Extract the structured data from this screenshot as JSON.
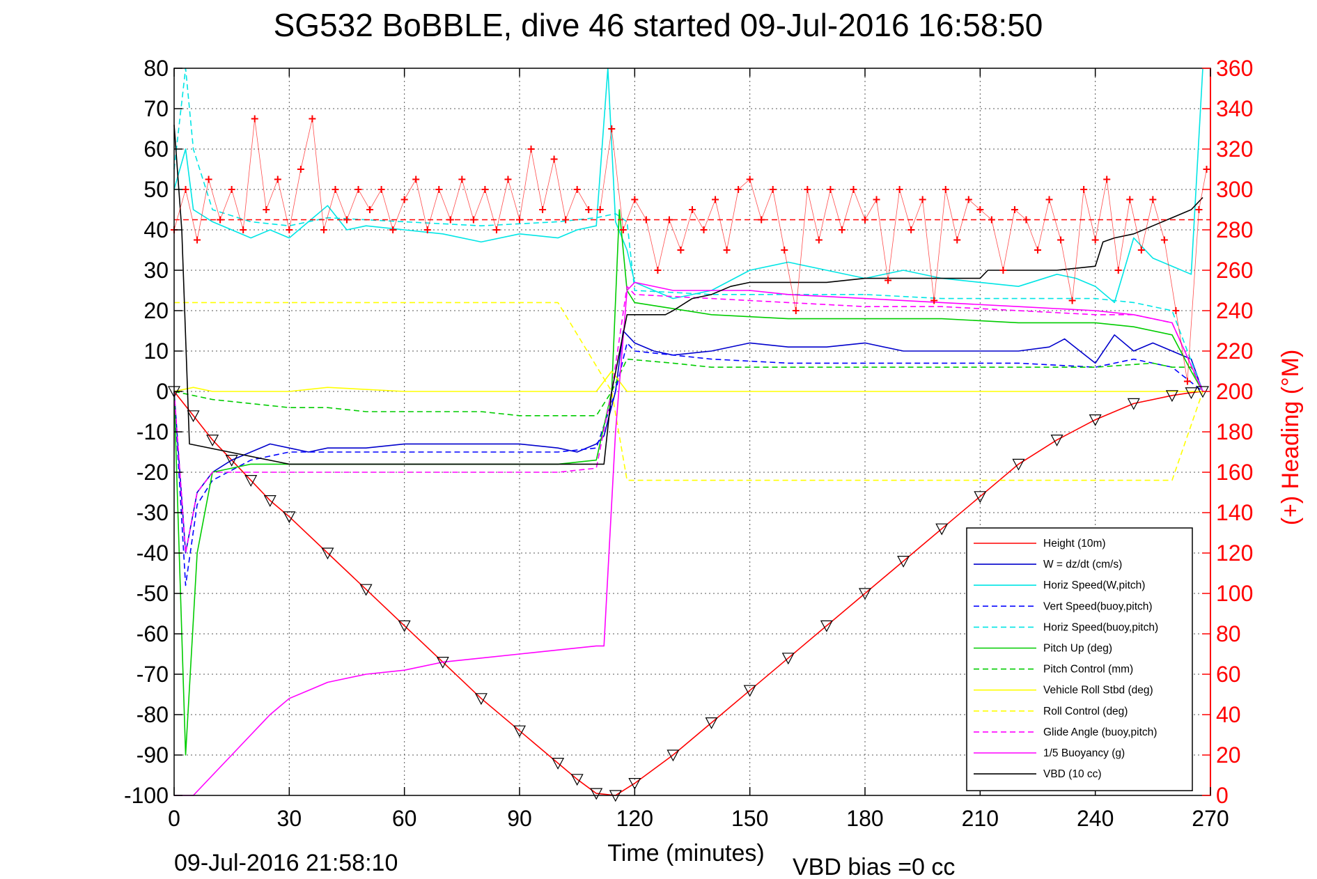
{
  "title": "SG532 BoBBLE, dive 46 started 09-Jul-2016 16:58:50",
  "footer_left": "09-Jul-2016 21:58:10",
  "footer_right": "VBD bias =0 cc",
  "chart_data": {
    "type": "line",
    "title": "SG532 BoBBLE, dive 46 started 09-Jul-2016 16:58:50",
    "xlabel": "Time (minutes)",
    "ylabel": "",
    "ylabel_right": "(+) Heading (°M)",
    "xlim": [
      0,
      270
    ],
    "ylim": [
      -100,
      80
    ],
    "ylim_right": [
      0,
      360
    ],
    "xticks": [
      0,
      30,
      60,
      90,
      120,
      150,
      180,
      210,
      240,
      270
    ],
    "yticks": [
      80,
      70,
      60,
      50,
      40,
      30,
      20,
      10,
      0,
      -10,
      -20,
      -30,
      -40,
      -50,
      -60,
      -70,
      -80,
      -90,
      -100
    ],
    "yticks_right": [
      360,
      340,
      320,
      300,
      280,
      260,
      240,
      220,
      200,
      180,
      160,
      140,
      120,
      100,
      80,
      60,
      40,
      20,
      0
    ],
    "grid": true,
    "legend_position": "bottom-right",
    "series": [
      {
        "name": "Height (10m)",
        "color": "#ff0000",
        "style": "solid",
        "x": [
          0,
          5,
          10,
          15,
          20,
          25,
          30,
          40,
          50,
          60,
          70,
          80,
          90,
          100,
          105,
          110,
          115,
          120,
          130,
          140,
          150,
          160,
          170,
          180,
          190,
          200,
          210,
          220,
          230,
          240,
          250,
          260,
          265,
          268
        ],
        "y": [
          0,
          -6,
          -12,
          -17,
          -22,
          -27,
          -31,
          -40,
          -49,
          -58,
          -67,
          -76,
          -84,
          -92,
          -96,
          -99.5,
          -100,
          -97,
          -90,
          -82,
          -74,
          -66,
          -58,
          -50,
          -42,
          -34,
          -26,
          -18,
          -12,
          -7,
          -3,
          -1,
          -0.3,
          0
        ]
      },
      {
        "name": "W = dz/dt (cm/s)",
        "color": "#0000cc",
        "style": "solid",
        "x": [
          0,
          3,
          6,
          10,
          15,
          20,
          25,
          30,
          35,
          40,
          45,
          50,
          60,
          70,
          80,
          90,
          100,
          105,
          110,
          112,
          115,
          117,
          120,
          125,
          130,
          140,
          150,
          160,
          170,
          180,
          190,
          200,
          210,
          220,
          228,
          232,
          236,
          240,
          245,
          250,
          255,
          260,
          265,
          268
        ],
        "y": [
          0,
          -40,
          -25,
          -20,
          -17,
          -15,
          -13,
          -14,
          -15,
          -14,
          -14,
          -14,
          -13,
          -13,
          -13,
          -13,
          -14,
          -15,
          -13,
          -11,
          0,
          15,
          12,
          10,
          9,
          10,
          12,
          11,
          11,
          12,
          10,
          10,
          10,
          10,
          11,
          13,
          10,
          7,
          14,
          10,
          12,
          10,
          8,
          0
        ]
      },
      {
        "name": "Horiz Speed(W,pitch)",
        "color": "#00e5e5",
        "style": "solid",
        "x": [
          0,
          3,
          5,
          10,
          15,
          20,
          25,
          30,
          35,
          40,
          45,
          50,
          60,
          70,
          80,
          90,
          100,
          105,
          110,
          113,
          115,
          118,
          120,
          125,
          130,
          140,
          150,
          160,
          170,
          180,
          190,
          200,
          210,
          220,
          230,
          235,
          240,
          245,
          250,
          255,
          260,
          265,
          268
        ],
        "y": [
          50,
          60,
          45,
          42,
          40,
          38,
          40,
          38,
          42,
          46,
          40,
          41,
          40,
          39,
          37,
          39,
          38,
          40,
          41,
          80,
          42,
          35,
          27,
          25,
          23,
          25,
          30,
          32,
          30,
          28,
          30,
          28,
          27,
          26,
          29,
          28,
          26,
          22,
          38,
          33,
          31,
          29,
          80
        ]
      },
      {
        "name": "Vert Speed(buoy,pitch)",
        "color": "#0000ff",
        "style": "dashed",
        "x": [
          0,
          3,
          6,
          10,
          20,
          30,
          40,
          60,
          80,
          100,
          110,
          115,
          118,
          120,
          140,
          160,
          180,
          200,
          220,
          240,
          250,
          260,
          268
        ],
        "y": [
          0,
          -48,
          -28,
          -22,
          -17,
          -15,
          -15,
          -15,
          -15,
          -15,
          -14,
          0,
          12,
          10,
          8,
          7,
          7,
          7,
          7,
          6,
          8,
          6,
          0
        ]
      },
      {
        "name": "Horiz Speed(buoy,pitch)",
        "color": "#00e5e5",
        "style": "dashed",
        "x": [
          0,
          3,
          5,
          10,
          20,
          30,
          40,
          60,
          80,
          100,
          110,
          115,
          118,
          120,
          140,
          160,
          180,
          200,
          220,
          240,
          250,
          260,
          268
        ],
        "y": [
          55,
          80,
          60,
          45,
          42,
          41,
          43,
          42,
          41,
          42,
          43,
          44,
          42,
          25,
          24,
          24,
          24,
          23,
          23,
          23,
          22,
          20,
          0
        ]
      },
      {
        "name": "Pitch Up (deg)",
        "color": "#00cc00",
        "style": "solid",
        "x": [
          0,
          3,
          6,
          10,
          20,
          30,
          40,
          60,
          80,
          100,
          110,
          114,
          116,
          118,
          120,
          140,
          160,
          180,
          200,
          220,
          240,
          250,
          260,
          265,
          268
        ],
        "y": [
          0,
          -90,
          -40,
          -20,
          -18,
          -18,
          -18,
          -18,
          -18,
          -18,
          -17,
          0,
          45,
          25,
          22,
          19,
          18,
          18,
          18,
          17,
          17,
          16,
          14,
          5,
          0
        ]
      },
      {
        "name": "Pitch Control (mm)",
        "color": "#00cc00",
        "style": "dashed",
        "x": [
          0,
          5,
          10,
          20,
          30,
          40,
          50,
          60,
          70,
          80,
          90,
          100,
          110,
          114,
          118,
          130,
          140,
          160,
          180,
          200,
          220,
          240,
          255,
          260,
          265,
          268
        ],
        "y": [
          0,
          -1,
          -2,
          -3,
          -4,
          -4,
          -5,
          -5,
          -5,
          -5,
          -6,
          -6,
          -6,
          0,
          8,
          7,
          6,
          6,
          6,
          6,
          6,
          6,
          7,
          6,
          6,
          0
        ]
      },
      {
        "name": "Vehicle Roll Stbd (deg)",
        "color": "#ffff00",
        "style": "solid",
        "x": [
          0,
          5,
          10,
          20,
          30,
          40,
          60,
          80,
          100,
          110,
          114,
          118,
          120,
          130,
          140,
          160,
          180,
          200,
          220,
          240,
          260,
          268
        ],
        "y": [
          0,
          1,
          0,
          0,
          0,
          1,
          0,
          0,
          0,
          0,
          5,
          0,
          0,
          0,
          0,
          0,
          0,
          0,
          0,
          0,
          0,
          0
        ]
      },
      {
        "name": "Roll Control (deg)",
        "color": "#ffff00",
        "style": "dashed",
        "x": [
          0,
          10,
          20,
          40,
          60,
          80,
          100,
          114,
          118,
          140,
          160,
          180,
          200,
          220,
          240,
          260,
          268
        ],
        "y": [
          22,
          22,
          22,
          22,
          22,
          22,
          22,
          0,
          -22,
          -22,
          -22,
          -22,
          -22,
          -22,
          -22,
          -22,
          0
        ]
      },
      {
        "name": "Glide Angle (buoy,pitch)",
        "color": "#ff00ff",
        "style": "dashed",
        "x": [
          0,
          3,
          6,
          10,
          20,
          30,
          40,
          60,
          80,
          100,
          110,
          114,
          118,
          120,
          140,
          160,
          180,
          200,
          220,
          240,
          250,
          260,
          268
        ],
        "y": [
          0,
          -40,
          -25,
          -20,
          -20,
          -20,
          -20,
          -20,
          -20,
          -20,
          -19,
          0,
          26,
          24,
          23,
          22,
          21,
          21,
          20,
          19,
          19,
          17,
          0
        ]
      },
      {
        "name": "1/5 Buoyancy (g)",
        "color": "#ff00ff",
        "style": "solid",
        "x": [
          0,
          5,
          10,
          15,
          20,
          25,
          30,
          35,
          40,
          50,
          60,
          70,
          80,
          90,
          100,
          110,
          112,
          115,
          118,
          120,
          130,
          140,
          150,
          160,
          180,
          200,
          220,
          240,
          250,
          260,
          268
        ],
        "y": [
          -100,
          -100,
          -95,
          -90,
          -85,
          -80,
          -76,
          -74,
          -72,
          -70,
          -69,
          -67,
          -66,
          -65,
          -64,
          -63,
          -63,
          -10,
          25,
          27,
          25,
          25,
          25,
          24,
          23,
          22,
          21,
          20,
          19,
          17,
          0
        ]
      },
      {
        "name": "VBD (10 cc)",
        "color": "#000000",
        "style": "solid",
        "x": [
          0,
          2,
          4,
          30,
          60,
          90,
          112,
          114,
          118,
          128,
          130,
          135,
          140,
          145,
          150,
          160,
          170,
          180,
          190,
          200,
          210,
          212,
          220,
          230,
          240,
          242,
          245,
          250,
          255,
          260,
          265,
          268
        ],
        "y": [
          66,
          40,
          -13,
          -18,
          -18,
          -18,
          -18,
          0,
          19,
          19,
          20,
          23,
          24,
          26,
          27,
          27,
          27,
          28,
          28,
          28,
          28,
          30,
          30,
          30,
          31,
          37,
          38,
          39,
          41,
          43,
          45,
          48
        ]
      }
    ],
    "heading_series": {
      "name": "Heading",
      "color": "#ff0000",
      "marker": "+",
      "x": [
        0,
        3,
        6,
        9,
        12,
        15,
        18,
        21,
        24,
        27,
        30,
        33,
        36,
        39,
        42,
        45,
        48,
        51,
        54,
        57,
        60,
        63,
        66,
        69,
        72,
        75,
        78,
        81,
        84,
        87,
        90,
        93,
        96,
        99,
        102,
        105,
        108,
        111,
        114,
        117,
        120,
        123,
        126,
        129,
        132,
        135,
        138,
        141,
        144,
        147,
        150,
        153,
        156,
        159,
        162,
        165,
        168,
        171,
        174,
        177,
        180,
        183,
        186,
        189,
        192,
        195,
        198,
        201,
        204,
        207,
        210,
        213,
        216,
        219,
        222,
        225,
        228,
        231,
        234,
        237,
        240,
        243,
        246,
        249,
        252,
        255,
        258,
        261,
        264,
        267,
        269
      ],
      "y": [
        280,
        300,
        275,
        305,
        285,
        300,
        280,
        335,
        290,
        305,
        280,
        310,
        335,
        280,
        300,
        285,
        300,
        290,
        300,
        280,
        295,
        305,
        280,
        300,
        285,
        305,
        285,
        300,
        280,
        305,
        285,
        320,
        290,
        315,
        285,
        300,
        290,
        290,
        330,
        280,
        295,
        285,
        260,
        285,
        270,
        290,
        280,
        295,
        270,
        300,
        305,
        285,
        300,
        270,
        240,
        300,
        275,
        300,
        280,
        300,
        285,
        295,
        255,
        300,
        280,
        295,
        245,
        300,
        275,
        295,
        290,
        285,
        260,
        290,
        285,
        270,
        295,
        275,
        245,
        300,
        275,
        305,
        260,
        295,
        270,
        295,
        275,
        240,
        205,
        290,
        310
      ]
    },
    "heading_reference": {
      "value_right": 285,
      "color": "#ff0000",
      "style": "dashed"
    }
  }
}
